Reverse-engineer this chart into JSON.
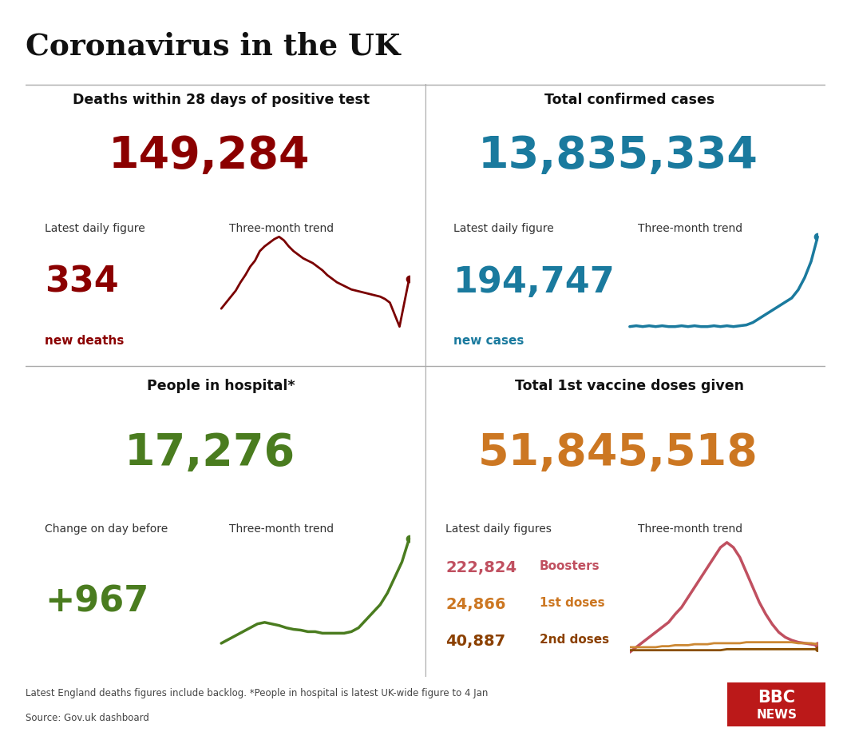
{
  "title": "Coronavirus in the UK",
  "bg_color": "#ffffff",
  "panel1": {
    "heading": "Deaths within 28 days of positive test",
    "total": "149,284",
    "total_color": "#8b0000",
    "daily_label": "Latest daily figure",
    "daily_value": "334",
    "daily_color": "#8b0000",
    "daily_sublabel": "new deaths",
    "daily_sublabel_color": "#8b0000",
    "trend_label": "Three-month trend",
    "trend_color": "#7a0000"
  },
  "panel2": {
    "heading": "Total confirmed cases",
    "total": "13,835,334",
    "total_color": "#1a7a9e",
    "daily_label": "Latest daily figure",
    "daily_value": "194,747",
    "daily_color": "#1a7a9e",
    "daily_sublabel": "new cases",
    "daily_sublabel_color": "#1a7a9e",
    "trend_label": "Three-month trend",
    "trend_color": "#1a7a9e"
  },
  "panel3": {
    "heading": "People in hospital*",
    "total": "17,276",
    "total_color": "#4a7c1f",
    "daily_label": "Change on day before",
    "daily_value": "+967",
    "daily_color": "#4a7c1f",
    "trend_label": "Three-month trend",
    "trend_color": "#4a7c1f"
  },
  "panel4": {
    "heading": "Total 1st vaccine doses given",
    "total": "51,845,518",
    "total_color": "#cc7722",
    "daily_label": "Latest daily figures",
    "trend_label": "Three-month trend",
    "items": [
      {
        "value": "222,824",
        "label": "Boosters",
        "value_color": "#c05060",
        "label_color": "#c05060"
      },
      {
        "value": "24,866",
        "label": "1st doses",
        "value_color": "#cc7722",
        "label_color": "#cc7722"
      },
      {
        "value": "40,887",
        "label": "2nd doses",
        "value_color": "#8b4000",
        "label_color": "#8b4000"
      }
    ],
    "trend_color_boosters": "#c05060",
    "trend_color_1st": "#cc8833",
    "trend_color_2nd": "#8b5000"
  },
  "footer1": "Latest England deaths figures include backlog. *People in hospital is latest UK-wide figure to 4 Jan",
  "footer2": "Source: Gov.uk dashboard",
  "trend_deaths": [
    3.0,
    3.5,
    4.0,
    4.5,
    5.2,
    5.8,
    6.5,
    7.0,
    7.8,
    8.2,
    8.5,
    8.8,
    9.0,
    8.7,
    8.2,
    7.8,
    7.5,
    7.2,
    7.0,
    6.8,
    6.5,
    6.2,
    5.8,
    5.5,
    5.2,
    5.0,
    4.8,
    4.6,
    4.5,
    4.4,
    4.3,
    4.2,
    4.1,
    4.0,
    3.8,
    3.5,
    2.5,
    1.5,
    3.5,
    5.5
  ],
  "trend_cases": [
    3.0,
    3.1,
    3.0,
    3.1,
    3.0,
    3.1,
    3.0,
    3.0,
    3.1,
    3.0,
    3.1,
    3.0,
    3.0,
    3.1,
    3.0,
    3.1,
    3.0,
    3.1,
    3.2,
    3.5,
    4.0,
    4.5,
    5.0,
    5.5,
    6.0,
    6.5,
    7.5,
    9.0,
    11.0,
    14.0
  ],
  "trend_hospital": [
    2.5,
    3.0,
    3.5,
    4.0,
    4.5,
    5.0,
    5.2,
    5.0,
    4.8,
    4.5,
    4.3,
    4.2,
    4.0,
    4.0,
    3.8,
    3.8,
    3.8,
    3.8,
    4.0,
    4.5,
    5.5,
    6.5,
    7.5,
    9.0,
    11.0,
    13.0,
    16.0
  ],
  "trend_boosters": [
    1.0,
    1.5,
    2.0,
    2.5,
    3.0,
    3.5,
    4.0,
    4.8,
    5.5,
    6.5,
    7.5,
    8.5,
    9.5,
    10.5,
    11.5,
    12.0,
    11.5,
    10.5,
    9.0,
    7.5,
    6.0,
    4.8,
    3.8,
    3.0,
    2.5,
    2.2,
    2.0,
    1.9,
    1.8,
    1.7
  ],
  "trend_1st": [
    1.5,
    1.5,
    1.5,
    1.5,
    1.5,
    1.6,
    1.6,
    1.7,
    1.7,
    1.7,
    1.8,
    1.8,
    1.8,
    1.9,
    1.9,
    1.9,
    1.9,
    1.9,
    2.0,
    2.0,
    2.0,
    2.0,
    2.0,
    2.0,
    2.0,
    2.0,
    1.9,
    1.9,
    1.9,
    1.8
  ],
  "trend_2nd": [
    1.2,
    1.2,
    1.2,
    1.2,
    1.2,
    1.2,
    1.2,
    1.2,
    1.2,
    1.2,
    1.2,
    1.2,
    1.2,
    1.2,
    1.2,
    1.3,
    1.3,
    1.3,
    1.3,
    1.3,
    1.3,
    1.3,
    1.3,
    1.3,
    1.3,
    1.3,
    1.3,
    1.3,
    1.3,
    1.3
  ]
}
